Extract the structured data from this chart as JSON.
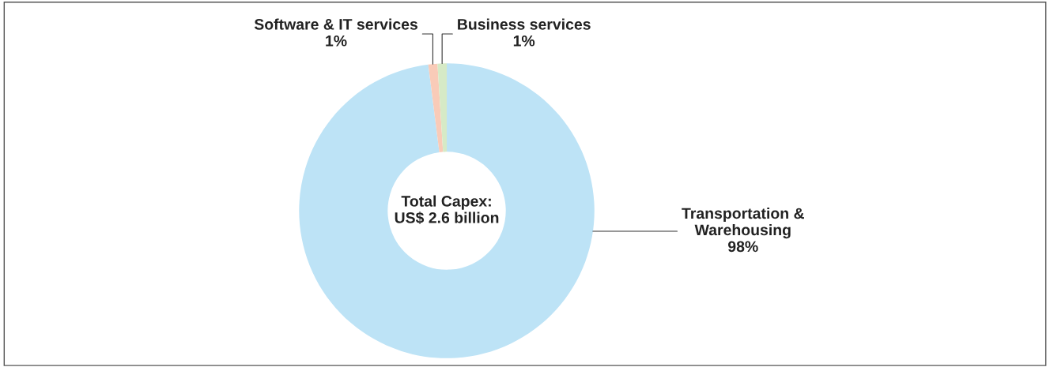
{
  "chart_data": {
    "type": "donut",
    "categories": [
      "Transportation & Warehousing",
      "Software & IT services",
      "Business services"
    ],
    "values": [
      98,
      1,
      1
    ],
    "value_labels": [
      "98%",
      "1%",
      "1%"
    ],
    "colors": [
      "#bde3f6",
      "#f9cbb8",
      "#d6eac6"
    ],
    "annotations": [
      "Total Capex:\nUS$ 2.6 billion"
    ],
    "legend": false
  }
}
